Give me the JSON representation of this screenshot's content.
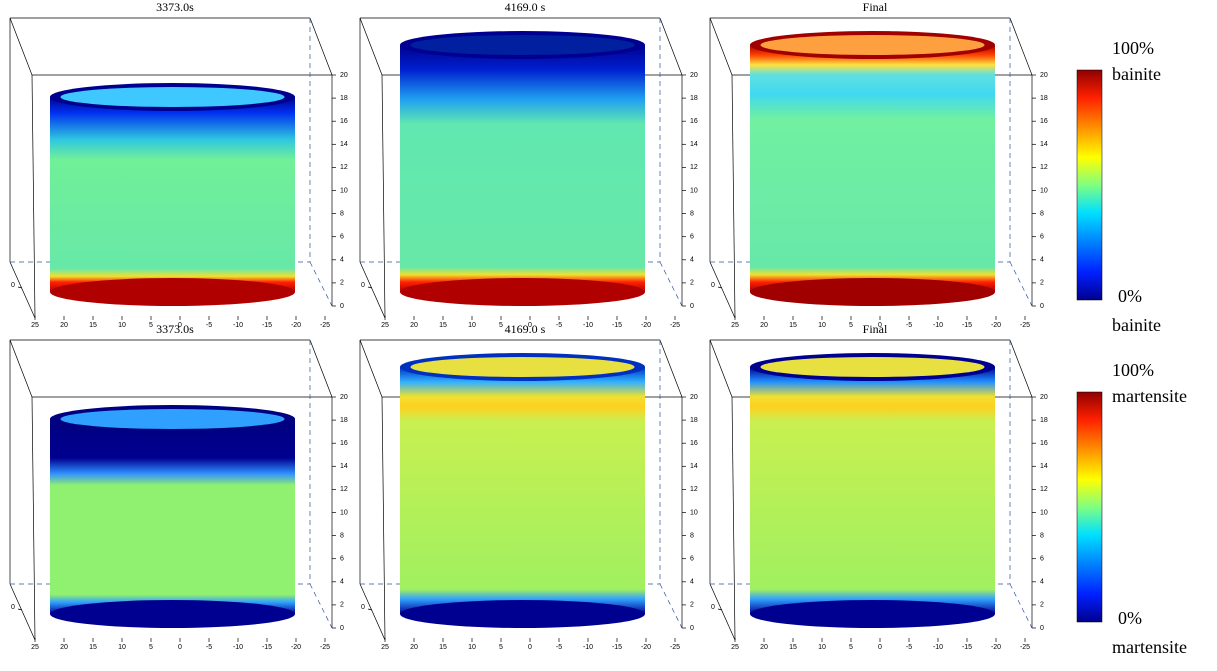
{
  "rows": [
    {
      "panels": [
        {
          "title": "3373.0s"
        },
        {
          "title": "4169.0 s"
        },
        {
          "title": "Final"
        }
      ],
      "colorbar": {
        "top_value": "100%",
        "top_phase": "bainite",
        "bottom_value": "0%",
        "bottom_phase": "bainite"
      }
    },
    {
      "panels": [
        {
          "title": "3373.0s"
        },
        {
          "title": "4169.0 s"
        },
        {
          "title": "Final"
        }
      ],
      "colorbar": {
        "top_value": "100%",
        "top_phase": "martensite",
        "bottom_value": "0%",
        "bottom_phase": "martensite"
      }
    }
  ],
  "zlim": [
    0,
    20
  ],
  "zticks": [
    0,
    2,
    4,
    6,
    8,
    10,
    12,
    14,
    16,
    18,
    20
  ],
  "xlim": [
    25,
    -25
  ],
  "xticks": [
    25,
    20,
    15,
    10,
    5,
    0,
    -5,
    -10,
    -15,
    -20,
    -25
  ],
  "yticks": [
    0
  ]
}
